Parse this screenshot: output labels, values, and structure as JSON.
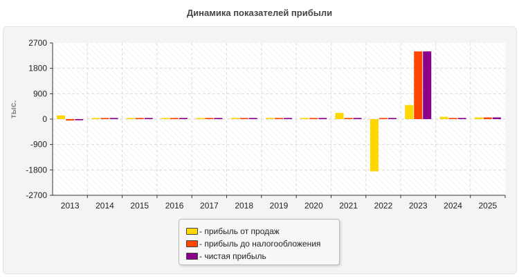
{
  "chart_data": {
    "type": "bar",
    "title": "Динамика показателей прибыли",
    "ylabel": "тыс.",
    "xlabel": "",
    "ylim": [
      -2700,
      2700
    ],
    "yticks": [
      "2700",
      "1800",
      "900",
      "0",
      "-900",
      "-1800",
      "-2700"
    ],
    "categories": [
      "2013",
      "2014",
      "2015",
      "2016",
      "2017",
      "2018",
      "2019",
      "2020",
      "2021",
      "2022",
      "2023",
      "2024",
      "2025"
    ],
    "grid": true,
    "legend_position": "bottom",
    "series": [
      {
        "name": "- прибыль от продаж",
        "color": "#ffd700",
        "values": [
          130,
          40,
          40,
          40,
          40,
          40,
          40,
          40,
          220,
          -1850,
          500,
          80,
          60
        ]
      },
      {
        "name": "- прибыль до налогообложения",
        "color": "#ff4500",
        "values": [
          -50,
          40,
          40,
          40,
          40,
          40,
          40,
          40,
          40,
          40,
          2400,
          40,
          60
        ]
      },
      {
        "name": "- чистая прибыль",
        "color": "#8b008b",
        "values": [
          -40,
          40,
          40,
          40,
          40,
          40,
          40,
          40,
          40,
          40,
          2400,
          40,
          60
        ]
      }
    ]
  }
}
